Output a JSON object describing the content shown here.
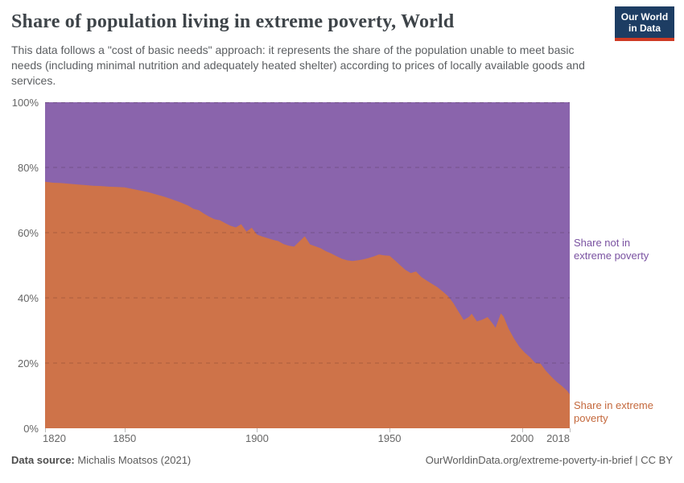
{
  "header": {
    "title": "Share of population living in extreme poverty, World",
    "subtitle": "This data follows a \"cost of basic needs\" approach: it represents the share of the population unable to meet basic needs (including minimal nutrition and adequately heated shelter) according to prices of locally available goods and services.",
    "logo": {
      "line1": "Our World",
      "line2": "in Data",
      "bg_color": "#1d3d63",
      "bar_color": "#ce3a24"
    }
  },
  "chart_data": {
    "type": "area",
    "stacked": true,
    "title": "Share of population living in extreme poverty, World",
    "xlabel": "",
    "ylabel": "",
    "xlim": [
      1820,
      2018
    ],
    "ylim": [
      0,
      100
    ],
    "grid": "dashed horizontal",
    "legend_position": "right annotations",
    "x": [
      1820,
      1823,
      1826,
      1829,
      1832,
      1835,
      1838,
      1841,
      1844,
      1847,
      1850,
      1853,
      1856,
      1859,
      1862,
      1865,
      1868,
      1871,
      1874,
      1876,
      1878,
      1880,
      1882,
      1884,
      1886,
      1888,
      1890,
      1892,
      1894,
      1896,
      1898,
      1900,
      1902,
      1904,
      1906,
      1908,
      1910,
      1912,
      1914,
      1916,
      1918,
      1920,
      1922,
      1924,
      1926,
      1928,
      1930,
      1932,
      1934,
      1936,
      1938,
      1940,
      1942,
      1944,
      1946,
      1948,
      1950,
      1952,
      1954,
      1956,
      1958,
      1960,
      1962,
      1964,
      1966,
      1968,
      1970,
      1972,
      1974,
      1976,
      1978,
      1980,
      1981,
      1983,
      1985,
      1987,
      1989,
      1990,
      1992,
      1993,
      1995,
      1997,
      1999,
      2001,
      2003,
      2005,
      2007,
      2009,
      2011,
      2013,
      2015,
      2017,
      2018
    ],
    "series": [
      {
        "name": "Share in extreme poverty",
        "color": "#CE7349",
        "label_color": "#C4683C",
        "values": [
          75.6,
          75.3,
          75.2,
          75.0,
          74.8,
          74.6,
          74.4,
          74.3,
          74.1,
          74.0,
          73.9,
          73.4,
          72.9,
          72.4,
          71.7,
          71.0,
          70.2,
          69.3,
          68.3,
          67.3,
          66.9,
          65.8,
          64.9,
          64.1,
          63.8,
          62.9,
          62.1,
          61.6,
          62.6,
          60.3,
          61.5,
          59.4,
          58.8,
          58.3,
          57.8,
          57.4,
          56.5,
          56.0,
          55.7,
          57.3,
          58.9,
          56.4,
          55.8,
          55.2,
          54.3,
          53.6,
          52.8,
          52.0,
          51.5,
          51.3,
          51.5,
          51.8,
          52.2,
          52.7,
          53.3,
          53.0,
          52.9,
          51.5,
          50.0,
          48.6,
          47.6,
          48.1,
          46.4,
          45.3,
          44.3,
          43.3,
          42.0,
          40.6,
          38.5,
          35.8,
          33.2,
          34.2,
          35.1,
          32.8,
          33.3,
          34.1,
          32.0,
          30.8,
          35.2,
          34.3,
          30.4,
          27.5,
          25.0,
          23.2,
          21.8,
          20.0,
          19.8,
          17.6,
          15.9,
          14.3,
          13.0,
          11.5,
          10.4
        ]
      },
      {
        "name": "Share not in extreme poverty",
        "color": "#8A64AC",
        "label_color": "#7A52A1",
        "derived": "stacked complement: 100 minus 'Share in extreme poverty'"
      }
    ],
    "yticks": [
      {
        "label": "0%",
        "value": 0
      },
      {
        "label": "20%",
        "value": 20
      },
      {
        "label": "40%",
        "value": 40
      },
      {
        "label": "60%",
        "value": 60
      },
      {
        "label": "80%",
        "value": 80
      },
      {
        "label": "100%",
        "value": 100
      }
    ],
    "xticks": [
      {
        "label": "1820",
        "year": 1820
      },
      {
        "label": "1850",
        "year": 1850
      },
      {
        "label": "1900",
        "year": 1900
      },
      {
        "label": "1950",
        "year": 1950
      },
      {
        "label": "2000",
        "year": 2000
      },
      {
        "label": "2018",
        "year": 2018
      }
    ]
  },
  "footer": {
    "source_label": "Data source:",
    "source": " Michalis Moatsos (2021)",
    "right": "OurWorldinData.org/extreme-poverty-in-brief | CC BY"
  }
}
